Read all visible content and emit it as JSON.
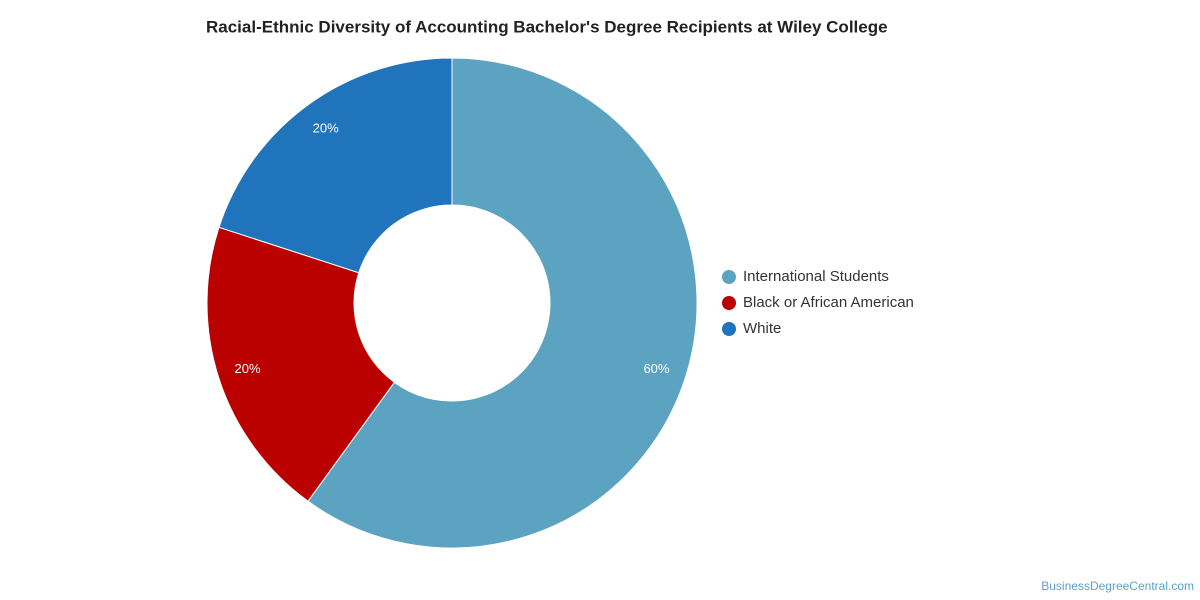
{
  "chart_data": {
    "type": "pie",
    "title": "Racial-Ethnic Diversity of Accounting Bachelor's Degree Recipients at Wiley College",
    "categories": [
      "International Students",
      "Black or African American",
      "White"
    ],
    "values": [
      60,
      20,
      20
    ],
    "value_labels": [
      "60%",
      "20%",
      "20%"
    ],
    "colors": [
      "#5ba3c0",
      "#bb0000",
      "#1f74bb"
    ],
    "legend": "right",
    "watermark": "BusinessDegreeCentral.com"
  }
}
